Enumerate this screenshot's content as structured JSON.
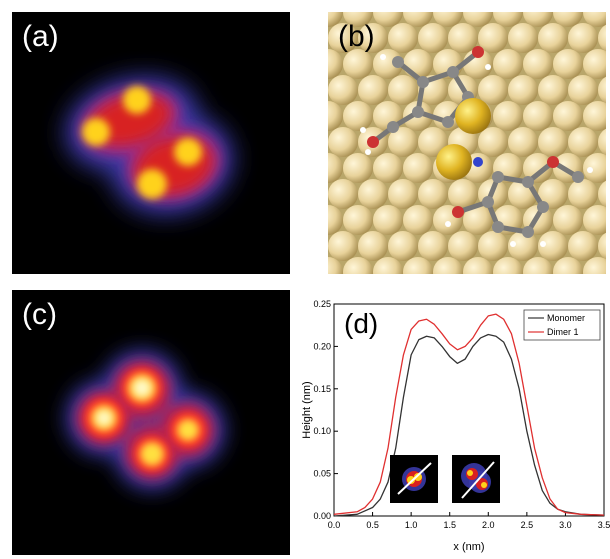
{
  "panels": {
    "a": {
      "label": "(a)"
    },
    "b": {
      "label": "(b)"
    },
    "c": {
      "label": "(c)"
    },
    "d": {
      "label": "(d)"
    }
  },
  "chart_data": {
    "type": "line",
    "xlabel": "x (nm)",
    "ylabel": "Height (nm)",
    "xlim": [
      0.0,
      3.5
    ],
    "ylim": [
      0.0,
      0.25
    ],
    "xticks": [
      "0.0",
      "0.5",
      "1.0",
      "1.5",
      "2.0",
      "2.5",
      "3.0",
      "3.5"
    ],
    "yticks": [
      "0.00",
      "0.05",
      "0.10",
      "0.15",
      "0.20",
      "0.25"
    ],
    "legend_position": "top-right",
    "series": [
      {
        "name": "Monomer",
        "color": "#333333",
        "x": [
          0.0,
          0.3,
          0.5,
          0.6,
          0.7,
          0.8,
          0.9,
          1.0,
          1.1,
          1.2,
          1.3,
          1.4,
          1.5,
          1.6,
          1.7,
          1.8,
          1.9,
          2.0,
          2.1,
          2.2,
          2.3,
          2.4,
          2.5,
          2.6,
          2.7,
          2.8,
          2.9,
          3.0,
          3.2,
          3.5
        ],
        "y": [
          0.0,
          0.002,
          0.01,
          0.02,
          0.04,
          0.08,
          0.14,
          0.19,
          0.208,
          0.212,
          0.21,
          0.2,
          0.188,
          0.18,
          0.185,
          0.2,
          0.21,
          0.214,
          0.212,
          0.205,
          0.185,
          0.15,
          0.1,
          0.06,
          0.03,
          0.015,
          0.008,
          0.005,
          0.002,
          0.001
        ]
      },
      {
        "name": "Dimer 1",
        "color": "#e03030",
        "x": [
          0.0,
          0.3,
          0.4,
          0.5,
          0.6,
          0.7,
          0.8,
          0.9,
          1.0,
          1.1,
          1.2,
          1.3,
          1.4,
          1.5,
          1.6,
          1.7,
          1.8,
          1.9,
          2.0,
          2.1,
          2.2,
          2.3,
          2.4,
          2.5,
          2.6,
          2.7,
          2.8,
          2.9,
          3.0,
          3.2,
          3.5
        ],
        "y": [
          0.002,
          0.005,
          0.01,
          0.02,
          0.04,
          0.08,
          0.14,
          0.19,
          0.22,
          0.23,
          0.232,
          0.226,
          0.215,
          0.203,
          0.196,
          0.2,
          0.21,
          0.225,
          0.236,
          0.238,
          0.232,
          0.215,
          0.18,
          0.13,
          0.08,
          0.045,
          0.02,
          0.008,
          0.004,
          0.002,
          0.001
        ]
      }
    ]
  }
}
